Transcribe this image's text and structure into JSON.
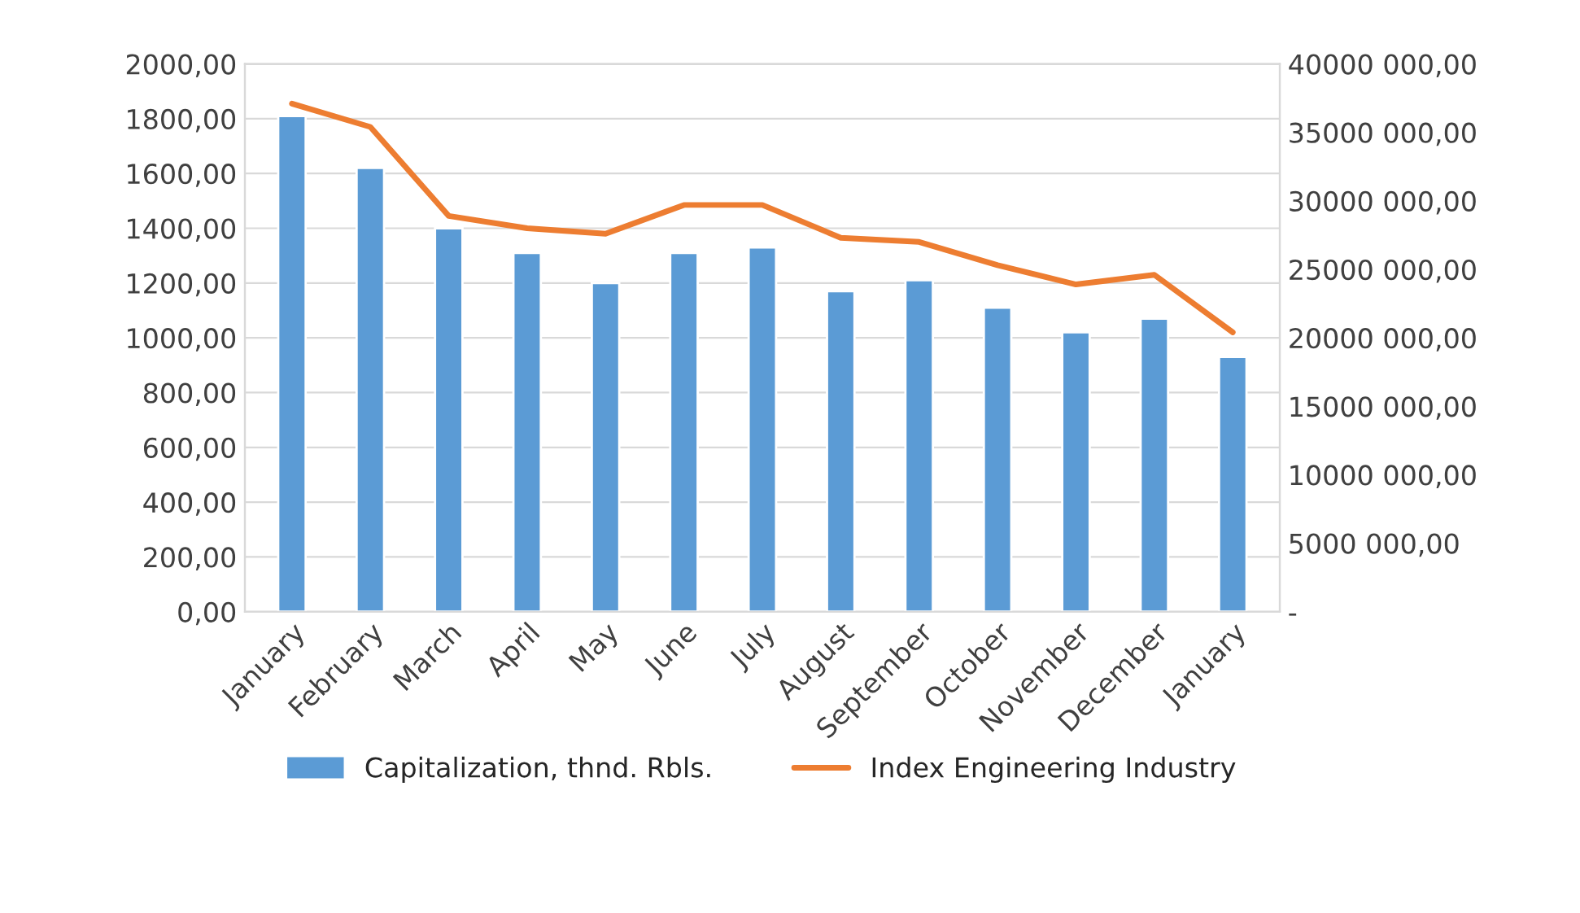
{
  "chart_data": {
    "type": "bar",
    "categories": [
      "January",
      "February",
      "March",
      "April",
      "May",
      "June",
      "July",
      "August",
      "September",
      "October",
      "November",
      "December",
      "January"
    ],
    "series": [
      {
        "name": "Capitalization, thnd. Rbls.",
        "color": "#5b9bd5",
        "values": [
          1810,
          1620,
          1400,
          1310,
          1200,
          1310,
          1330,
          1170,
          1210,
          1110,
          1020,
          1070,
          930
        ]
      },
      {
        "name": "Index Engineering Industry",
        "type": "line",
        "axis": "y2",
        "color": "#ed7d31",
        "values": [
          37100000,
          35400000,
          28900000,
          28000000,
          27600000,
          29700000,
          29700000,
          27300000,
          27000000,
          25300000,
          23900000,
          24600000,
          20400000
        ]
      }
    ],
    "ylim": [
      0,
      2000
    ],
    "yticks": [
      {
        "value": 0,
        "label": "0,00"
      },
      {
        "value": 200,
        "label": "200,00"
      },
      {
        "value": 400,
        "label": "400,00"
      },
      {
        "value": 600,
        "label": "600,00"
      },
      {
        "value": 800,
        "label": "800,00"
      },
      {
        "value": 1000,
        "label": "1000,00"
      },
      {
        "value": 1200,
        "label": "1200,00"
      },
      {
        "value": 1400,
        "label": "1400,00"
      },
      {
        "value": 1600,
        "label": "1600,00"
      },
      {
        "value": 1800,
        "label": "1800,00"
      },
      {
        "value": 2000,
        "label": "2000,00"
      }
    ],
    "y2lim": [
      0,
      40000000
    ],
    "y2ticks": [
      {
        "value": 0,
        "label": "-"
      },
      {
        "value": 5000000,
        "label": "5000 000,00"
      },
      {
        "value": 10000000,
        "label": "10000 000,00"
      },
      {
        "value": 15000000,
        "label": "15000 000,00"
      },
      {
        "value": 20000000,
        "label": "20000 000,00"
      },
      {
        "value": 25000000,
        "label": "25000 000,00"
      },
      {
        "value": 30000000,
        "label": "30000 000,00"
      },
      {
        "value": 35000000,
        "label": "35000 000,00"
      },
      {
        "value": 40000000,
        "label": "40000 000,00"
      }
    ],
    "grid": "y",
    "legend": "bottom",
    "marker": "none",
    "line_style": "solid"
  }
}
